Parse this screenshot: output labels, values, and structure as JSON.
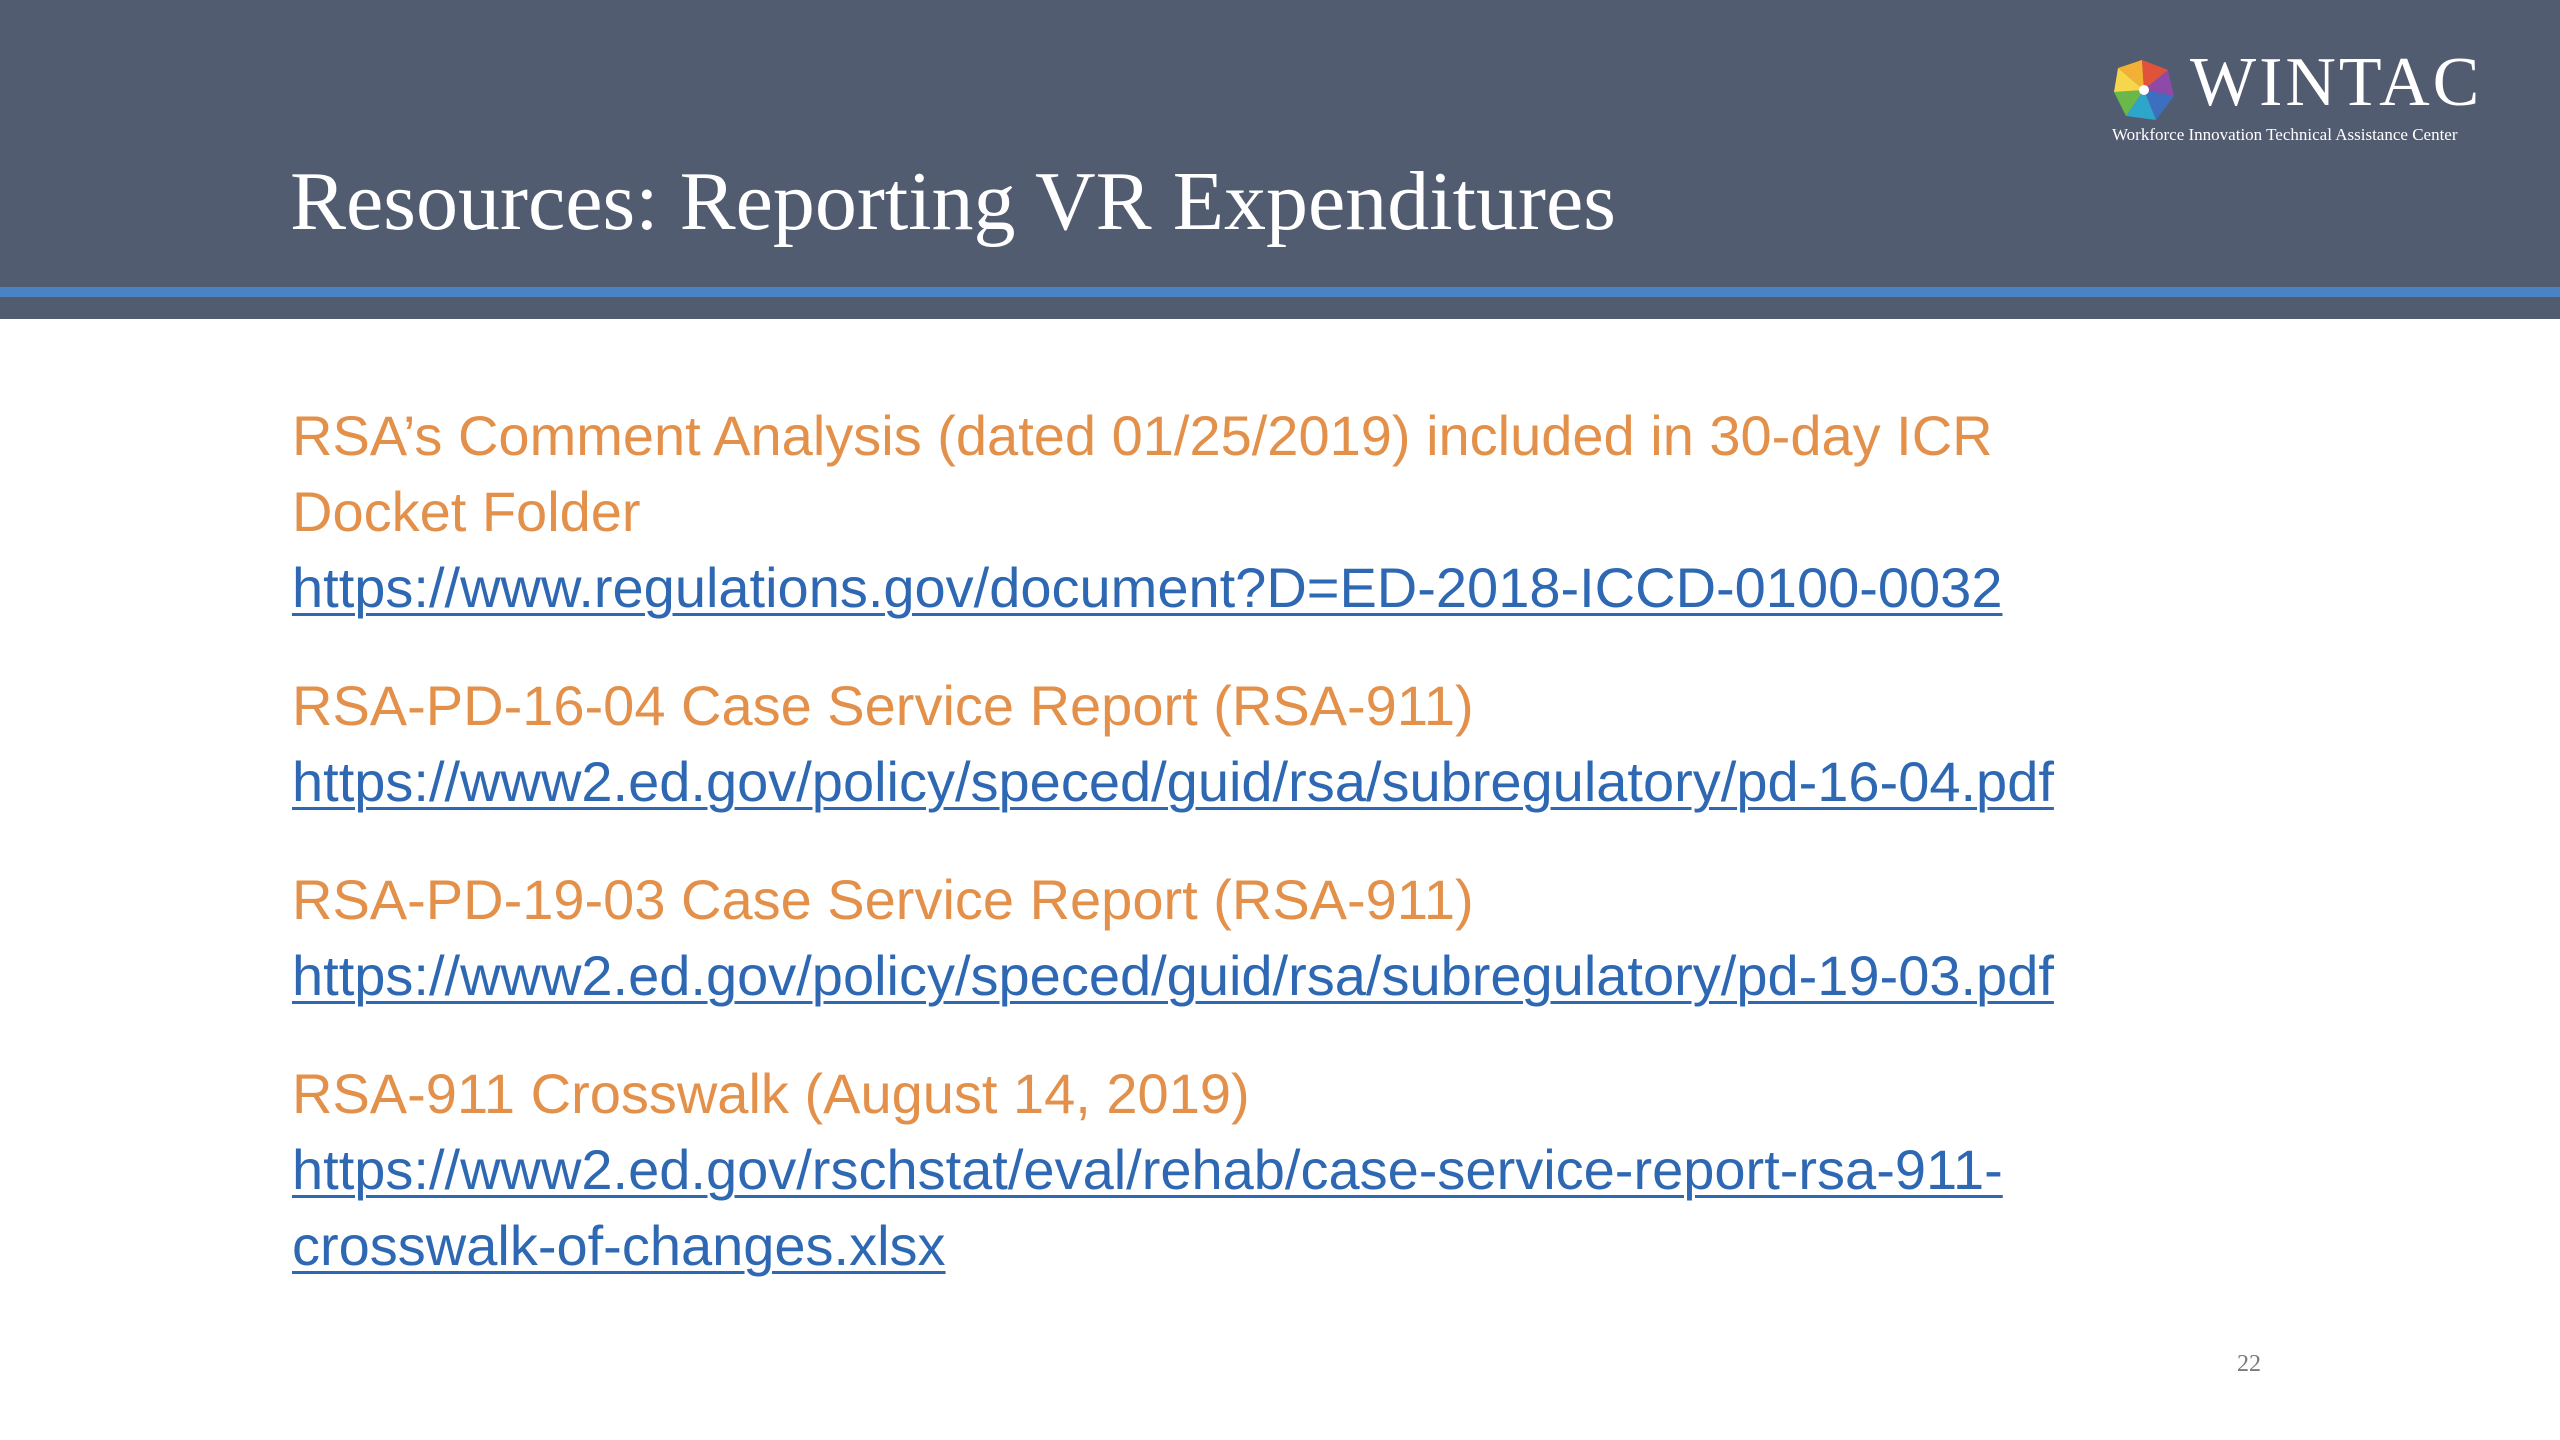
{
  "header": {
    "title": "Resources: Reporting VR Expenditures",
    "colors": {
      "band": "#525c70",
      "rule": "#4a82c4"
    }
  },
  "logo": {
    "wordmark": "WINTAC",
    "tagline": "Workforce Innovation Technical Assistance Center",
    "icon": "pinwheel-logo-icon"
  },
  "entries": [
    {
      "title_line1": "RSA’s Comment Analysis (dated 01/25/2019) included in 30-day ICR",
      "title_line2": "Docket Folder",
      "link": "https://www.regulations.gov/document?D=ED-2018-ICCD-0100-0032"
    },
    {
      "title_line1": "RSA-PD-16-04 Case Service Report (RSA-911)",
      "link": "https://www2.ed.gov/policy/speced/guid/rsa/subregulatory/pd-16-04.pdf"
    },
    {
      "title_line1": "RSA-PD-19-03 Case Service Report (RSA-911)",
      "link": "https://www2.ed.gov/policy/speced/guid/rsa/subregulatory/pd-19-03.pdf"
    },
    {
      "title_line1": "RSA-911 Crosswalk (August 14, 2019)",
      "link_line1": "https://www2.ed.gov/rschstat/eval/rehab/case-service-report-rsa-911-",
      "link_line2": "crosswalk-of-changes.xlsx"
    }
  ],
  "colors": {
    "heading": "#e3904a",
    "link": "#2e68b3"
  },
  "page_number": "22"
}
